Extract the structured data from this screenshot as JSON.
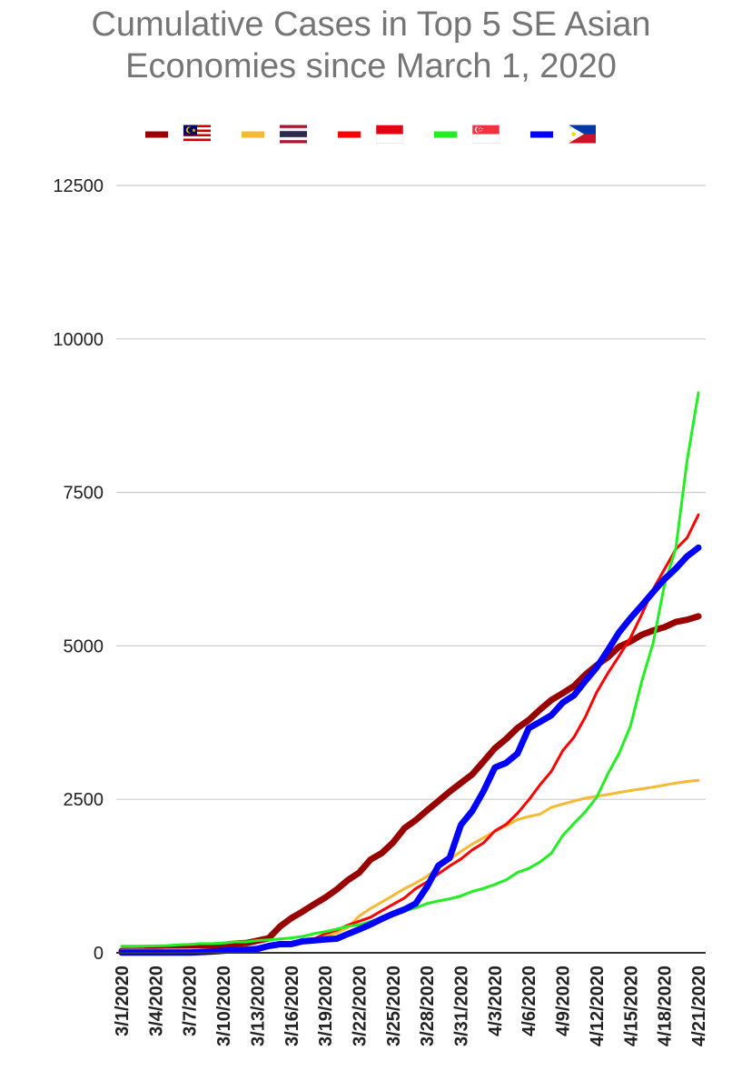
{
  "title_lines": [
    "Cumulative Cases in Top 5 SE Asian",
    "Economies since March 1, 2020"
  ],
  "chart_data": {
    "type": "line",
    "title": "Cumulative Cases in Top 5 SE Asian Economies since March 1, 2020",
    "xlabel": "",
    "ylabel": "",
    "x": [
      "3/1/2020",
      "3/2/2020",
      "3/3/2020",
      "3/4/2020",
      "3/5/2020",
      "3/6/2020",
      "3/7/2020",
      "3/8/2020",
      "3/9/2020",
      "3/10/2020",
      "3/11/2020",
      "3/12/2020",
      "3/13/2020",
      "3/14/2020",
      "3/15/2020",
      "3/16/2020",
      "3/17/2020",
      "3/18/2020",
      "3/19/2020",
      "3/20/2020",
      "3/21/2020",
      "3/22/2020",
      "3/23/2020",
      "3/24/2020",
      "3/25/2020",
      "3/26/2020",
      "3/27/2020",
      "3/28/2020",
      "3/29/2020",
      "3/30/2020",
      "3/31/2020",
      "4/1/2020",
      "4/2/2020",
      "4/3/2020",
      "4/4/2020",
      "4/5/2020",
      "4/6/2020",
      "4/7/2020",
      "4/8/2020",
      "4/9/2020",
      "4/10/2020",
      "4/11/2020",
      "4/12/2020",
      "4/13/2020",
      "4/14/2020",
      "4/15/2020",
      "4/16/2020",
      "4/17/2020",
      "4/18/2020",
      "4/19/2020",
      "4/20/2020",
      "4/21/2020"
    ],
    "x_tick_labels": [
      "3/1/2020",
      "3/4/2020",
      "3/7/2020",
      "3/10/2020",
      "3/13/2020",
      "3/16/2020",
      "3/19/2020",
      "3/22/2020",
      "3/25/2020",
      "3/28/2020",
      "3/31/2020",
      "4/3/2020",
      "4/6/2020",
      "4/9/2020",
      "4/12/2020",
      "4/15/2020",
      "4/18/2020",
      "4/21/2020"
    ],
    "y_ticks": [
      0,
      2500,
      5000,
      7500,
      10000,
      12500
    ],
    "ylim": [
      0,
      12500
    ],
    "grid": true,
    "legend_position": "top",
    "series": [
      {
        "flag": "malaysia-flag",
        "color": "#990000",
        "width": 7,
        "values": [
          29,
          29,
          36,
          50,
          50,
          83,
          93,
          99,
          117,
          129,
          149,
          158,
          197,
          238,
          428,
          566,
          673,
          790,
          900,
          1030,
          1183,
          1306,
          1518,
          1624,
          1796,
          2031,
          2161,
          2320,
          2470,
          2626,
          2766,
          2908,
          3116,
          3333,
          3483,
          3662,
          3793,
          3963,
          4119,
          4228,
          4346,
          4530,
          4683,
          4817,
          4987,
          5072,
          5182,
          5251,
          5305,
          5389,
          5425,
          5482
        ]
      },
      {
        "flag": "thailand-flag",
        "color": "#f6b933",
        "width": 3,
        "values": [
          42,
          43,
          43,
          43,
          47,
          48,
          50,
          50,
          50,
          53,
          59,
          70,
          75,
          82,
          114,
          147,
          177,
          212,
          272,
          322,
          411,
          599,
          721,
          827,
          934,
          1045,
          1136,
          1245,
          1388,
          1524,
          1651,
          1771,
          1875,
          1978,
          2067,
          2169,
          2220,
          2258,
          2369,
          2423,
          2473,
          2518,
          2551,
          2579,
          2613,
          2643,
          2672,
          2700,
          2733,
          2765,
          2792,
          2811
        ]
      },
      {
        "flag": "indonesia-flag",
        "color": "#ff0000",
        "width": 3,
        "values": [
          0,
          2,
          2,
          2,
          2,
          4,
          4,
          6,
          19,
          27,
          34,
          34,
          69,
          96,
          117,
          134,
          172,
          227,
          311,
          369,
          450,
          514,
          579,
          686,
          790,
          893,
          1046,
          1155,
          1285,
          1414,
          1528,
          1677,
          1790,
          1986,
          2092,
          2273,
          2491,
          2738,
          2956,
          3293,
          3512,
          3842,
          4241,
          4557,
          4839,
          5136,
          5516,
          5923,
          6248,
          6575,
          6760,
          7135
        ]
      },
      {
        "flag": "singapore-flag",
        "color": "#22ee22",
        "width": 3,
        "values": [
          106,
          108,
          110,
          112,
          117,
          130,
          138,
          150,
          150,
          160,
          178,
          178,
          200,
          212,
          226,
          243,
          266,
          313,
          345,
          385,
          432,
          455,
          509,
          558,
          631,
          683,
          732,
          802,
          844,
          879,
          926,
          1000,
          1049,
          1114,
          1189,
          1309,
          1375,
          1481,
          1623,
          1910,
          2108,
          2299,
          2532,
          2918,
          3252,
          3699,
          4427,
          5050,
          5992,
          6588,
          8014,
          9125
        ]
      },
      {
        "flag": "philippines-flag",
        "color": "#0000ff",
        "width": 7,
        "values": [
          3,
          3,
          3,
          3,
          3,
          3,
          5,
          10,
          20,
          33,
          49,
          52,
          64,
          111,
          140,
          142,
          187,
          202,
          217,
          230,
          307,
          380,
          462,
          552,
          636,
          707,
          803,
          1075,
          1418,
          1546,
          2084,
          2311,
          2633,
          3018,
          3094,
          3246,
          3660,
          3764,
          3870,
          4076,
          4195,
          4428,
          4648,
          4932,
          5223,
          5453,
          5660,
          5878,
          6087,
          6259,
          6459,
          6599
        ]
      }
    ]
  }
}
